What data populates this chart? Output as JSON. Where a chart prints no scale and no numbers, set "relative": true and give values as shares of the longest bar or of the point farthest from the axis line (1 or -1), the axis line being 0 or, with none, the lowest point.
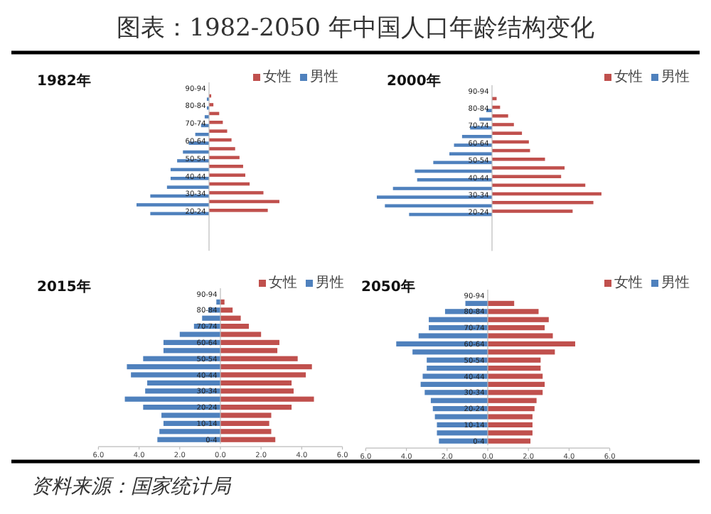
{
  "chart_data": [
    {
      "type": "other",
      "title": "图表：1982-2050 年中国人口年龄结构变化",
      "annotations": [
        "资料来源：国家统计局"
      ]
    },
    {
      "type": "bar",
      "orientation": "horizontal",
      "title": "1982年",
      "legend": "top right",
      "relative": true,
      "categories": [
        "90-94",
        null,
        "80-84",
        null,
        "70-74",
        null,
        "60-64",
        null,
        "50-54",
        null,
        "40-44",
        null,
        "30-34",
        null,
        "20-24",
        null,
        null,
        null,
        null
      ],
      "series": [
        {
          "name": "女性",
          "color": "#c0504d",
          "values": [
            null,
            0.03,
            0.06,
            0.14,
            0.19,
            0.25,
            0.31,
            0.36,
            0.42,
            0.47,
            0.5,
            0.56,
            0.75,
            0.97,
            0.81,
            null,
            null,
            null,
            null
          ]
        },
        {
          "name": "男性",
          "color": "#4f81bd",
          "values": [
            null,
            -0.03,
            -0.03,
            -0.06,
            -0.11,
            -0.19,
            -0.28,
            -0.36,
            -0.44,
            -0.53,
            -0.53,
            -0.58,
            -0.81,
            -1,
            -0.81,
            null,
            null,
            null,
            null
          ]
        }
      ]
    },
    {
      "type": "bar",
      "orientation": "horizontal",
      "title": "2000年",
      "legend": "top right",
      "relative": true,
      "categories": [
        "90-94",
        null,
        "80-84",
        null,
        "70-74",
        null,
        "60-64",
        null,
        "50-54",
        null,
        "40-44",
        null,
        "30-34",
        null,
        "20-24",
        null,
        null,
        null,
        null
      ],
      "series": [
        {
          "name": "女性",
          "color": "#c0504d",
          "values": [
            null,
            0.04,
            0.07,
            0.14,
            0.19,
            0.26,
            0.32,
            0.33,
            0.46,
            0.63,
            0.6,
            0.81,
            0.95,
            0.88,
            0.7,
            null,
            null,
            null,
            null
          ]
        },
        {
          "name": "男性",
          "color": "#4f81bd",
          "values": [
            null,
            null,
            -0.05,
            -0.11,
            -0.19,
            -0.26,
            -0.33,
            -0.37,
            -0.51,
            -0.67,
            -0.65,
            -0.86,
            -1,
            -0.93,
            -0.72,
            null,
            null,
            null,
            null
          ]
        }
      ]
    },
    {
      "type": "bar",
      "orientation": "horizontal",
      "stacked": true,
      "title": "2015年",
      "legend": "top right",
      "xlim": [
        -6,
        6
      ],
      "xticks": [
        {
          "value": -6,
          "label": "6.0"
        },
        {
          "value": -4,
          "label": "4.0"
        },
        {
          "value": -2,
          "label": "2.0"
        },
        {
          "value": 0,
          "label": "0.0"
        },
        {
          "value": 2,
          "label": "2.0"
        },
        {
          "value": 4,
          "label": "4.0"
        },
        {
          "value": 6,
          "label": "6.0"
        }
      ],
      "categories": [
        "90-94",
        null,
        "80-84",
        null,
        "70-74",
        null,
        "60-64",
        null,
        "50-54",
        null,
        "40-44",
        null,
        "30-34",
        null,
        "20-24",
        null,
        "10-14",
        null,
        "0-4"
      ],
      "series": [
        {
          "name": "女性",
          "color": "#c0504d",
          "values": [
            null,
            0.2,
            0.6,
            1.0,
            1.4,
            2.0,
            2.9,
            2.8,
            3.8,
            4.5,
            4.2,
            3.5,
            3.6,
            4.6,
            3.5,
            2.5,
            2.4,
            2.5,
            2.7
          ]
        },
        {
          "name": "男性",
          "color": "#4f81bd",
          "values": [
            null,
            -0.2,
            -0.6,
            -0.9,
            -1.3,
            -2.0,
            -2.8,
            -2.8,
            -3.8,
            -4.6,
            -4.4,
            -3.6,
            -3.7,
            -4.7,
            -3.8,
            -2.9,
            -2.8,
            -3.0,
            -3.1
          ]
        }
      ]
    },
    {
      "type": "bar",
      "orientation": "horizontal",
      "stacked": true,
      "title": "2050年",
      "legend": "top right",
      "xlim": [
        -6,
        6
      ],
      "xticks": [
        {
          "value": -6,
          "label": "6.0"
        },
        {
          "value": -4,
          "label": "4.0"
        },
        {
          "value": -2,
          "label": "2.0"
        },
        {
          "value": 0,
          "label": "0.0"
        },
        {
          "value": 2,
          "label": "2.0"
        },
        {
          "value": 4,
          "label": "4.0"
        },
        {
          "value": 6,
          "label": "6.0"
        }
      ],
      "categories": [
        "90-94",
        null,
        "80-84",
        null,
        "70-74",
        null,
        "60-64",
        null,
        "50-54",
        null,
        "40-44",
        null,
        "30-34",
        null,
        "20-24",
        null,
        "10-14",
        null,
        "0-4"
      ],
      "series": [
        {
          "name": "女性",
          "color": "#c0504d",
          "values": [
            null,
            1.3,
            2.5,
            3.0,
            2.8,
            3.2,
            4.3,
            3.3,
            2.6,
            2.6,
            2.7,
            2.8,
            2.7,
            2.4,
            2.3,
            2.2,
            2.2,
            2.2,
            2.1
          ]
        },
        {
          "name": "男性",
          "color": "#4f81bd",
          "values": [
            null,
            -1.1,
            -2.1,
            -2.9,
            -2.9,
            -3.4,
            -4.5,
            -3.7,
            -3.0,
            -3.0,
            -3.2,
            -3.3,
            -3.1,
            -2.8,
            -2.7,
            -2.6,
            -2.5,
            -2.5,
            -2.4
          ]
        }
      ]
    }
  ]
}
